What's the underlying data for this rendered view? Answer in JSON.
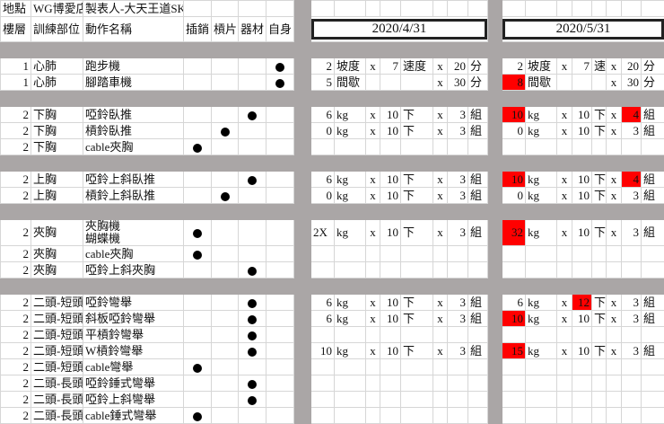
{
  "colors": {
    "highlight": "#ff0000",
    "background_gray": "#aaa6a6",
    "grid": "#d6d6d6"
  },
  "info_row": {
    "location_label": "地點",
    "location": "WG博愛店",
    "author": "製表人-大天王道SKY"
  },
  "header": {
    "floor": "樓層",
    "part": "訓練部位",
    "exercise": "動作名稱",
    "marks": [
      "插銷",
      "槓片",
      "器材",
      "自身"
    ]
  },
  "dates": [
    "2020/4/31",
    "2020/5/31"
  ],
  "mark_icon": "filled-circle",
  "rows": [
    {
      "gap": true
    },
    {
      "floor": "1",
      "part": "心肺",
      "name": "跑步機",
      "mark": 3,
      "t1": [
        "2",
        "坡度",
        "x",
        "7",
        "速度",
        "x",
        "20",
        "分"
      ],
      "t2": [
        "2",
        "坡度",
        "x",
        "7",
        "速",
        "x",
        "20",
        "分"
      ],
      "red": []
    },
    {
      "floor": "1",
      "part": "心肺",
      "name": "腳踏車機",
      "mark": 3,
      "t1": [
        "5",
        "間歇",
        "",
        "",
        "",
        "x",
        "30",
        "分"
      ],
      "t2": [
        "8",
        "間歇",
        "",
        "",
        "",
        "x",
        "30",
        "分"
      ],
      "red": [
        0
      ]
    },
    {
      "gap": true
    },
    {
      "floor": "2",
      "part": "下胸",
      "name": "啞鈴臥推",
      "mark": 2,
      "t1": [
        "6",
        "kg",
        "x",
        "10",
        "下",
        "x",
        "3",
        "組"
      ],
      "t2": [
        "10",
        "kg",
        "x",
        "10",
        "下",
        "x",
        "4",
        "組"
      ],
      "red": [
        0,
        6
      ]
    },
    {
      "floor": "2",
      "part": "下胸",
      "name": "槓鈴臥推",
      "mark": 1,
      "t1": [
        "0",
        "kg",
        "x",
        "10",
        "下",
        "x",
        "3",
        "組"
      ],
      "t2": [
        "0",
        "kg",
        "x",
        "10",
        "下",
        "x",
        "3",
        "組"
      ],
      "red": []
    },
    {
      "floor": "2",
      "part": "下胸",
      "name": "cable夾胸",
      "mark": 0,
      "t1": [],
      "t2": [],
      "red": []
    },
    {
      "gap": true
    },
    {
      "floor": "2",
      "part": "上胸",
      "name": "啞鈴上斜臥推",
      "mark": 2,
      "t1": [
        "6",
        "kg",
        "x",
        "10",
        "下",
        "x",
        "3",
        "組"
      ],
      "t2": [
        "10",
        "kg",
        "x",
        "10",
        "下",
        "x",
        "4",
        "組"
      ],
      "red": [
        0,
        6
      ]
    },
    {
      "floor": "2",
      "part": "上胸",
      "name": "槓鈴上斜臥推",
      "mark": 1,
      "t1": [
        "0",
        "kg",
        "x",
        "10",
        "下",
        "x",
        "3",
        "組"
      ],
      "t2": [
        "0",
        "kg",
        "x",
        "10",
        "下",
        "x",
        "3",
        "組"
      ],
      "red": []
    },
    {
      "gap": true
    },
    {
      "floor": "2",
      "part": "夾胸",
      "name": "夾胸機",
      "name2": "蝴蝶機",
      "mark": 0,
      "tall": true,
      "t1": [
        "2X",
        "kg",
        "x",
        "10",
        "下",
        "x",
        "3",
        "組"
      ],
      "t2": [
        "32",
        "kg",
        "x",
        "10",
        "下",
        "x",
        "3",
        "組"
      ],
      "red": [
        0
      ]
    },
    {
      "floor": "2",
      "part": "夾胸",
      "name": "cable夾胸",
      "mark": 0,
      "t1": [],
      "t2": [],
      "red": []
    },
    {
      "floor": "2",
      "part": "夾胸",
      "name": "啞鈴上斜夾胸",
      "mark": 2,
      "t1": [],
      "t2": [],
      "red": []
    },
    {
      "gap": true
    },
    {
      "floor": "2",
      "part": "二頭-短頭",
      "name": "啞鈴彎舉",
      "mark": 2,
      "t1": [
        "6",
        "kg",
        "x",
        "10",
        "下",
        "x",
        "3",
        "組"
      ],
      "t2": [
        "6",
        "kg",
        "x",
        "12",
        "下",
        "x",
        "3",
        "組"
      ],
      "red": [
        3
      ]
    },
    {
      "floor": "2",
      "part": "二頭-短頭",
      "name": "斜板啞鈴彎舉",
      "mark": 2,
      "t1": [
        "6",
        "kg",
        "x",
        "10",
        "下",
        "x",
        "3",
        "組"
      ],
      "t2": [
        "10",
        "kg",
        "x",
        "10",
        "下",
        "x",
        "3",
        "組"
      ],
      "red": [
        0
      ]
    },
    {
      "floor": "2",
      "part": "二頭-短頭",
      "name": "平槓鈴彎舉",
      "mark": 2,
      "t1": [],
      "t2": [],
      "red": []
    },
    {
      "floor": "2",
      "part": "二頭-短頭",
      "name": "W槓鈴彎舉",
      "mark": 2,
      "t1": [
        "10",
        "kg",
        "x",
        "10",
        "下",
        "x",
        "3",
        "組"
      ],
      "t2": [
        "15",
        "kg",
        "x",
        "10",
        "下",
        "x",
        "3",
        "組"
      ],
      "red": [
        0
      ]
    },
    {
      "floor": "2",
      "part": "二頭-短頭",
      "name": "cable彎舉",
      "mark": 0,
      "t1": [],
      "t2": [],
      "red": []
    },
    {
      "floor": "2",
      "part": "二頭-長頭",
      "name": "啞鈴錘式彎舉",
      "mark": 2,
      "t1": [],
      "t2": [],
      "red": []
    },
    {
      "floor": "2",
      "part": "二頭-長頭",
      "name": "啞鈴上斜彎舉",
      "mark": 2,
      "t1": [],
      "t2": [],
      "red": []
    },
    {
      "floor": "2",
      "part": "二頭-長頭",
      "name": "cable錘式彎舉",
      "mark": 0,
      "t1": [],
      "t2": [],
      "red": []
    }
  ]
}
